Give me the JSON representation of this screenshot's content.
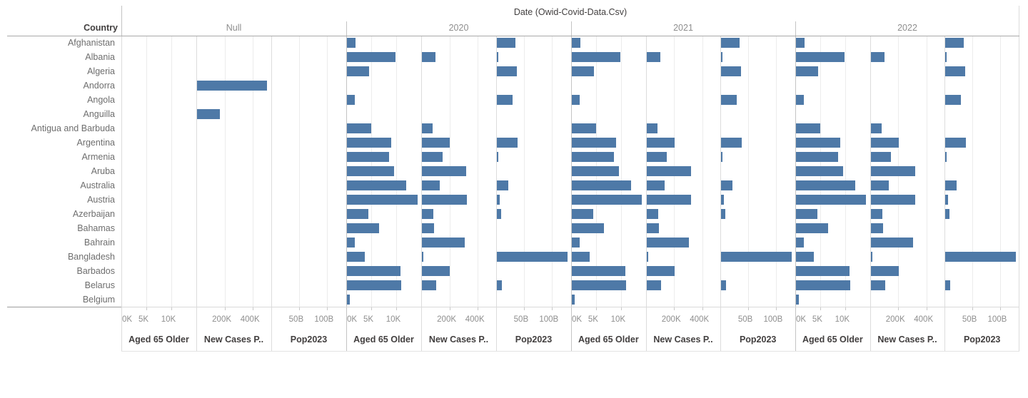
{
  "colors": {
    "bar": "#4e79a7"
  },
  "chart_data": {
    "type": "bar",
    "title": "Date (Owid-Covid-Data.Csv)",
    "row_header": "Country",
    "legend_position": "none",
    "grid": true,
    "groups": [
      {
        "label": "Null",
        "key": "null"
      },
      {
        "label": "2020",
        "key": "2020"
      },
      {
        "label": "2021",
        "key": "2021"
      },
      {
        "label": "2022",
        "key": "2022"
      }
    ],
    "measures": [
      {
        "label": "Aged 65 Older",
        "max": 15,
        "ticks": [
          {
            "label": "0K",
            "value": 0
          },
          {
            "label": "5K",
            "value": 5
          },
          {
            "label": "10K",
            "value": 10
          }
        ]
      },
      {
        "label": "New Cases P..",
        "max": 530,
        "ticks": [
          {
            "label": "200K",
            "value": 200
          },
          {
            "label": "400K",
            "value": 400
          }
        ]
      },
      {
        "label": "Pop2023",
        "max": 135,
        "ticks": [
          {
            "label": "50B",
            "value": 50
          },
          {
            "label": "100B",
            "value": 100
          }
        ]
      }
    ],
    "rows": [
      {
        "country": "Afghanistan",
        "v": {
          "null": [
            null,
            null,
            null
          ],
          "2020": [
            1.7,
            null,
            33
          ],
          "2021": [
            1.7,
            null,
            33
          ],
          "2022": [
            1.7,
            null,
            33
          ]
        }
      },
      {
        "country": "Albania",
        "v": {
          "null": [
            null,
            null,
            null
          ],
          "2020": [
            9.7,
            96,
            2.6
          ],
          "2021": [
            9.7,
            96,
            2.6
          ],
          "2022": [
            9.7,
            96,
            2.6
          ]
        }
      },
      {
        "country": "Algeria",
        "v": {
          "null": [
            null,
            null,
            null
          ],
          "2020": [
            4.4,
            null,
            36
          ],
          "2021": [
            4.4,
            null,
            36
          ],
          "2022": [
            4.4,
            null,
            36
          ]
        }
      },
      {
        "country": "Andorra",
        "v": {
          "null": [
            null,
            495,
            null
          ],
          "2020": [
            null,
            null,
            null
          ],
          "2021": [
            null,
            null,
            null
          ],
          "2022": [
            null,
            null,
            null
          ]
        }
      },
      {
        "country": "Angola",
        "v": {
          "null": [
            null,
            null,
            null
          ],
          "2020": [
            1.6,
            null,
            28
          ],
          "2021": [
            1.6,
            null,
            28
          ],
          "2022": [
            1.6,
            null,
            28
          ]
        }
      },
      {
        "country": "Anguilla",
        "v": {
          "null": [
            null,
            162,
            null
          ],
          "2020": [
            null,
            null,
            null
          ],
          "2021": [
            null,
            null,
            null
          ],
          "2022": [
            null,
            null,
            null
          ]
        }
      },
      {
        "country": "Antigua and Barbuda",
        "v": {
          "null": [
            null,
            null,
            null
          ],
          "2020": [
            4.9,
            76,
            null
          ],
          "2021": [
            4.9,
            76,
            null
          ],
          "2022": [
            4.9,
            76,
            null
          ]
        }
      },
      {
        "country": "Argentina",
        "v": {
          "null": [
            null,
            null,
            null
          ],
          "2020": [
            8.9,
            197,
            37
          ],
          "2021": [
            8.9,
            197,
            37
          ],
          "2022": [
            8.9,
            197,
            37
          ]
        }
      },
      {
        "country": "Armenia",
        "v": {
          "null": [
            null,
            null,
            null
          ],
          "2020": [
            8.4,
            146,
            2.6
          ],
          "2021": [
            8.4,
            146,
            2.6
          ],
          "2022": [
            8.4,
            146,
            2.6
          ]
        }
      },
      {
        "country": "Aruba",
        "v": {
          "null": [
            null,
            null,
            null
          ],
          "2020": [
            9.4,
            315,
            null
          ],
          "2021": [
            9.4,
            315,
            null
          ],
          "2022": [
            9.4,
            315,
            null
          ]
        }
      },
      {
        "country": "Australia",
        "v": {
          "null": [
            null,
            null,
            null
          ],
          "2020": [
            11.9,
            128,
            20
          ],
          "2021": [
            11.9,
            128,
            20
          ],
          "2022": [
            11.9,
            128,
            20
          ]
        }
      },
      {
        "country": "Austria",
        "v": {
          "null": [
            null,
            null,
            null
          ],
          "2020": [
            14.1,
            318,
            5
          ],
          "2021": [
            14.1,
            318,
            5
          ],
          "2022": [
            14.1,
            318,
            5
          ]
        }
      },
      {
        "country": "Azerbaijan",
        "v": {
          "null": [
            null,
            null,
            null
          ],
          "2020": [
            4.3,
            81,
            7.5
          ],
          "2021": [
            4.3,
            81,
            7.5
          ],
          "2022": [
            4.3,
            81,
            7.5
          ]
        }
      },
      {
        "country": "Bahamas",
        "v": {
          "null": [
            null,
            null,
            null
          ],
          "2020": [
            6.4,
            86,
            null
          ],
          "2021": [
            6.4,
            86,
            null
          ],
          "2022": [
            6.4,
            86,
            null
          ]
        }
      },
      {
        "country": "Bahrain",
        "v": {
          "null": [
            null,
            null,
            null
          ],
          "2020": [
            1.6,
            303,
            null
          ],
          "2021": [
            1.6,
            303,
            null
          ],
          "2022": [
            1.6,
            303,
            null
          ]
        }
      },
      {
        "country": "Bangladesh",
        "v": {
          "null": [
            null,
            null,
            null
          ],
          "2020": [
            3.6,
            10,
            127
          ],
          "2021": [
            3.6,
            10,
            127
          ],
          "2022": [
            3.6,
            10,
            127
          ]
        }
      },
      {
        "country": "Barbados",
        "v": {
          "null": [
            null,
            null,
            null
          ],
          "2020": [
            10.7,
            197,
            null
          ],
          "2021": [
            10.7,
            197,
            null
          ],
          "2022": [
            10.7,
            197,
            null
          ]
        }
      },
      {
        "country": "Belarus",
        "v": {
          "null": [
            null,
            null,
            null
          ],
          "2020": [
            10.9,
            101,
            9
          ],
          "2021": [
            10.9,
            101,
            9
          ],
          "2022": [
            10.9,
            101,
            9
          ]
        }
      },
      {
        "country": "Belgium",
        "v": {
          "null": [
            null,
            null,
            null
          ],
          "2020": [
            0.5,
            null,
            null
          ],
          "2021": [
            0.5,
            null,
            null
          ],
          "2022": [
            0.5,
            null,
            null
          ]
        }
      }
    ]
  }
}
